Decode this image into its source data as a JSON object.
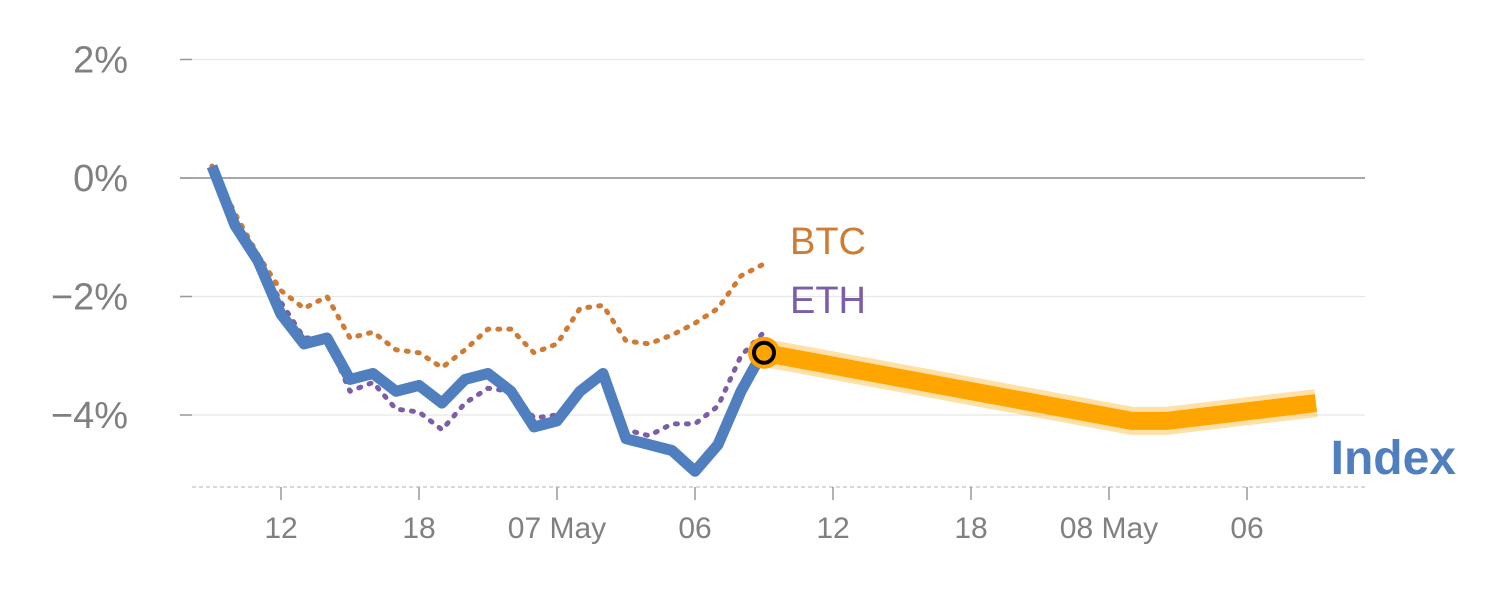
{
  "chart_data": {
    "type": "line",
    "title": "",
    "xlabel": "",
    "ylabel": "",
    "ylim": [
      -5.2,
      2.2
    ],
    "y_ticks": [
      2,
      0,
      -2,
      -4
    ],
    "y_tick_labels": [
      "2%",
      "0%",
      "−2%",
      "−4%"
    ],
    "x_ticks": [
      3,
      9,
      15,
      21,
      27,
      33,
      39,
      45
    ],
    "x_tick_labels": [
      "12",
      "18",
      "07 May",
      "06",
      "12",
      "18",
      "08 May",
      "06"
    ],
    "xlim": [
      -1,
      49
    ],
    "grid": true,
    "series": [
      {
        "name": "Index",
        "style": "solid",
        "color": "#4f7fbf",
        "x": [
          0,
          1,
          2,
          3,
          4,
          5,
          6,
          7,
          8,
          9,
          10,
          11,
          12,
          13,
          14,
          15,
          16,
          17,
          18,
          19,
          20,
          21,
          22,
          23,
          24
        ],
        "values": [
          0.2,
          -0.8,
          -1.4,
          -2.3,
          -2.8,
          -2.7,
          -3.4,
          -3.3,
          -3.6,
          -3.5,
          -3.8,
          -3.4,
          -3.3,
          -3.6,
          -4.2,
          -4.1,
          -3.6,
          -3.3,
          -4.4,
          -4.5,
          -4.6,
          -4.95,
          -4.5,
          -3.6,
          -2.9
        ]
      },
      {
        "name": "BTC",
        "style": "dotted",
        "color": "#d07b33",
        "x": [
          0,
          1,
          2,
          3,
          4,
          5,
          6,
          7,
          8,
          9,
          10,
          11,
          12,
          13,
          14,
          15,
          16,
          17,
          18,
          19,
          20,
          21,
          22,
          23,
          24
        ],
        "values": [
          0.2,
          -0.6,
          -1.3,
          -1.9,
          -2.2,
          -2.0,
          -2.7,
          -2.6,
          -2.9,
          -2.95,
          -3.2,
          -2.9,
          -2.55,
          -2.55,
          -2.95,
          -2.8,
          -2.2,
          -2.15,
          -2.75,
          -2.8,
          -2.65,
          -2.45,
          -2.2,
          -1.65,
          -1.45
        ]
      },
      {
        "name": "ETH",
        "style": "dotted",
        "color": "#7b5ea7",
        "x": [
          0,
          1,
          2,
          3,
          4,
          5,
          6,
          7,
          8,
          9,
          10,
          11,
          12,
          13,
          14,
          15,
          16,
          17,
          18,
          19,
          20,
          21,
          22,
          23,
          24
        ],
        "values": [
          0.2,
          -0.75,
          -1.35,
          -2.1,
          -2.7,
          -2.7,
          -3.6,
          -3.45,
          -3.9,
          -3.95,
          -4.25,
          -3.8,
          -3.55,
          -3.6,
          -4.05,
          -4.0,
          -3.65,
          -3.35,
          -4.25,
          -4.35,
          -4.15,
          -4.15,
          -3.85,
          -3.0,
          -2.6
        ]
      },
      {
        "name": "",
        "style": "forecast",
        "color": "#ffa500",
        "x": [
          24,
          40,
          41.5,
          48
        ],
        "values": [
          -2.95,
          -4.1,
          -4.1,
          -3.8
        ]
      }
    ],
    "labels": {
      "btc": "BTC",
      "eth": "ETH",
      "index": "Index"
    }
  }
}
